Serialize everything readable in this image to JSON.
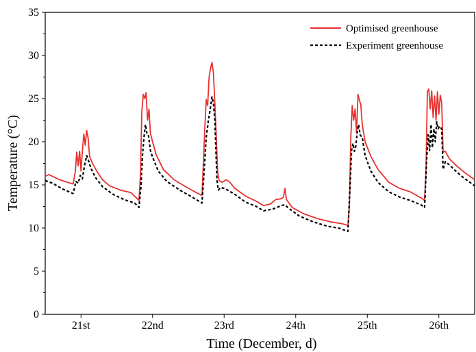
{
  "chart_data": {
    "type": "line",
    "xlabel": "Time (December, d)",
    "ylabel": "Temperature (°C)",
    "ylim": [
      0,
      35
    ],
    "yticks": [
      0,
      5,
      10,
      15,
      20,
      25,
      30,
      35
    ],
    "xlim": [
      20.5,
      26.5
    ],
    "xticks": [
      {
        "value": 21,
        "label": "21st"
      },
      {
        "value": 22,
        "label": "22nd"
      },
      {
        "value": 23,
        "label": "23rd"
      },
      {
        "value": 24,
        "label": "24th"
      },
      {
        "value": 25,
        "label": "25th"
      },
      {
        "value": 26,
        "label": "26th"
      }
    ],
    "legend_position": "top-right",
    "grid": false,
    "series": [
      {
        "name": "Optimised greenhouse",
        "color": "#e8312f",
        "style": "solid",
        "points": [
          [
            20.5,
            16.0
          ],
          [
            20.55,
            16.2
          ],
          [
            20.7,
            15.6
          ],
          [
            20.85,
            15.2
          ],
          [
            20.89,
            15.1
          ],
          [
            20.92,
            16.5
          ],
          [
            20.94,
            18.8
          ],
          [
            20.96,
            17.2
          ],
          [
            20.98,
            18.9
          ],
          [
            21.0,
            16.6
          ],
          [
            21.02,
            19.0
          ],
          [
            21.04,
            20.9
          ],
          [
            21.06,
            19.6
          ],
          [
            21.08,
            21.3
          ],
          [
            21.1,
            20.4
          ],
          [
            21.12,
            18.3
          ],
          [
            21.16,
            17.5
          ],
          [
            21.22,
            16.6
          ],
          [
            21.3,
            15.6
          ],
          [
            21.4,
            14.9
          ],
          [
            21.55,
            14.4
          ],
          [
            21.7,
            14.1
          ],
          [
            21.81,
            13.2
          ],
          [
            21.83,
            16.0
          ],
          [
            21.85,
            23.5
          ],
          [
            21.87,
            25.5
          ],
          [
            21.89,
            25.0
          ],
          [
            21.91,
            25.7
          ],
          [
            21.93,
            22.5
          ],
          [
            21.95,
            23.8
          ],
          [
            21.97,
            21.0
          ],
          [
            22.0,
            20.0
          ],
          [
            22.05,
            18.5
          ],
          [
            22.15,
            16.8
          ],
          [
            22.3,
            15.6
          ],
          [
            22.5,
            14.6
          ],
          [
            22.66,
            13.9
          ],
          [
            22.69,
            13.8
          ],
          [
            22.71,
            17.5
          ],
          [
            22.73,
            21.5
          ],
          [
            22.75,
            24.9
          ],
          [
            22.77,
            24.2
          ],
          [
            22.79,
            27.5
          ],
          [
            22.81,
            28.5
          ],
          [
            22.83,
            29.2
          ],
          [
            22.85,
            28.0
          ],
          [
            22.87,
            24.5
          ],
          [
            22.89,
            20.5
          ],
          [
            22.91,
            16.5
          ],
          [
            22.93,
            15.5
          ],
          [
            22.97,
            15.3
          ],
          [
            23.03,
            15.6
          ],
          [
            23.08,
            15.3
          ],
          [
            23.15,
            14.6
          ],
          [
            23.3,
            13.7
          ],
          [
            23.45,
            13.1
          ],
          [
            23.55,
            12.6
          ],
          [
            23.65,
            12.8
          ],
          [
            23.72,
            13.3
          ],
          [
            23.8,
            13.4
          ],
          [
            23.83,
            13.6
          ],
          [
            23.85,
            14.6
          ],
          [
            23.87,
            13.3
          ],
          [
            23.95,
            12.4
          ],
          [
            24.1,
            11.7
          ],
          [
            24.3,
            11.1
          ],
          [
            24.5,
            10.7
          ],
          [
            24.65,
            10.5
          ],
          [
            24.73,
            10.3
          ],
          [
            24.75,
            12.5
          ],
          [
            24.77,
            20.5
          ],
          [
            24.79,
            24.2
          ],
          [
            24.81,
            22.5
          ],
          [
            24.83,
            23.8
          ],
          [
            24.85,
            21.0
          ],
          [
            24.87,
            25.5
          ],
          [
            24.89,
            24.8
          ],
          [
            24.91,
            24.3
          ],
          [
            24.93,
            22.0
          ],
          [
            24.97,
            20.0
          ],
          [
            25.05,
            18.3
          ],
          [
            25.15,
            16.8
          ],
          [
            25.3,
            15.3
          ],
          [
            25.45,
            14.6
          ],
          [
            25.6,
            14.2
          ],
          [
            25.75,
            13.5
          ],
          [
            25.8,
            13.2
          ],
          [
            25.82,
            16.5
          ],
          [
            25.84,
            25.8
          ],
          [
            25.86,
            26.1
          ],
          [
            25.88,
            23.8
          ],
          [
            25.9,
            25.9
          ],
          [
            25.92,
            22.8
          ],
          [
            25.94,
            25.3
          ],
          [
            25.96,
            22.5
          ],
          [
            25.98,
            25.8
          ],
          [
            26.0,
            23.2
          ],
          [
            26.02,
            25.4
          ],
          [
            26.04,
            24.5
          ],
          [
            26.06,
            18.8
          ],
          [
            26.09,
            18.9
          ],
          [
            26.15,
            18.0
          ],
          [
            26.25,
            17.2
          ],
          [
            26.35,
            16.5
          ],
          [
            26.45,
            15.9
          ],
          [
            26.5,
            15.6
          ]
        ]
      },
      {
        "name": "Experiment greenhouse",
        "color": "#000000",
        "style": "dashed",
        "points": [
          [
            20.5,
            15.5
          ],
          [
            20.6,
            15.2
          ],
          [
            20.75,
            14.5
          ],
          [
            20.89,
            14.0
          ],
          [
            20.93,
            15.4
          ],
          [
            20.96,
            15.2
          ],
          [
            20.99,
            16.1
          ],
          [
            21.02,
            15.7
          ],
          [
            21.05,
            17.3
          ],
          [
            21.08,
            18.4
          ],
          [
            21.11,
            17.7
          ],
          [
            21.14,
            16.9
          ],
          [
            21.2,
            15.9
          ],
          [
            21.3,
            14.8
          ],
          [
            21.45,
            13.9
          ],
          [
            21.6,
            13.3
          ],
          [
            21.75,
            12.9
          ],
          [
            21.81,
            12.4
          ],
          [
            21.84,
            15.0
          ],
          [
            21.86,
            18.5
          ],
          [
            21.88,
            20.5
          ],
          [
            21.9,
            22.0
          ],
          [
            21.92,
            21.0
          ],
          [
            21.94,
            20.9
          ],
          [
            21.97,
            19.0
          ],
          [
            22.0,
            18.2
          ],
          [
            22.08,
            16.6
          ],
          [
            22.2,
            15.4
          ],
          [
            22.4,
            14.3
          ],
          [
            22.55,
            13.6
          ],
          [
            22.69,
            12.9
          ],
          [
            22.72,
            16.5
          ],
          [
            22.75,
            20.5
          ],
          [
            22.78,
            22.5
          ],
          [
            22.81,
            24.0
          ],
          [
            22.83,
            25.2
          ],
          [
            22.85,
            24.5
          ],
          [
            22.87,
            22.5
          ],
          [
            22.9,
            15.5
          ],
          [
            22.92,
            14.4
          ],
          [
            22.95,
            14.7
          ],
          [
            23.0,
            14.6
          ],
          [
            23.05,
            14.4
          ],
          [
            23.15,
            13.9
          ],
          [
            23.3,
            13.0
          ],
          [
            23.45,
            12.5
          ],
          [
            23.55,
            12.0
          ],
          [
            23.68,
            12.2
          ],
          [
            23.8,
            12.6
          ],
          [
            23.85,
            12.7
          ],
          [
            23.9,
            12.3
          ],
          [
            24.05,
            11.4
          ],
          [
            24.25,
            10.7
          ],
          [
            24.45,
            10.2
          ],
          [
            24.6,
            10.0
          ],
          [
            24.73,
            9.6
          ],
          [
            24.76,
            15.0
          ],
          [
            24.78,
            19.0
          ],
          [
            24.8,
            19.8
          ],
          [
            24.82,
            18.9
          ],
          [
            24.84,
            19.5
          ],
          [
            24.86,
            21.1
          ],
          [
            24.88,
            22.0
          ],
          [
            24.9,
            20.8
          ],
          [
            24.93,
            20.5
          ],
          [
            24.97,
            18.4
          ],
          [
            25.05,
            16.6
          ],
          [
            25.15,
            15.3
          ],
          [
            25.3,
            14.2
          ],
          [
            25.45,
            13.6
          ],
          [
            25.6,
            13.2
          ],
          [
            25.75,
            12.7
          ],
          [
            25.8,
            12.4
          ],
          [
            25.83,
            18.0
          ],
          [
            25.85,
            20.8
          ],
          [
            25.87,
            19.0
          ],
          [
            25.89,
            22.0
          ],
          [
            25.91,
            19.3
          ],
          [
            25.93,
            21.5
          ],
          [
            25.95,
            20.0
          ],
          [
            25.97,
            22.3
          ],
          [
            25.99,
            21.5
          ],
          [
            26.01,
            21.8
          ],
          [
            26.04,
            21.5
          ],
          [
            26.06,
            16.8
          ],
          [
            26.09,
            17.7
          ],
          [
            26.15,
            17.3
          ],
          [
            26.25,
            16.5
          ],
          [
            26.35,
            15.8
          ],
          [
            26.45,
            15.2
          ],
          [
            26.5,
            14.9
          ]
        ]
      }
    ]
  }
}
